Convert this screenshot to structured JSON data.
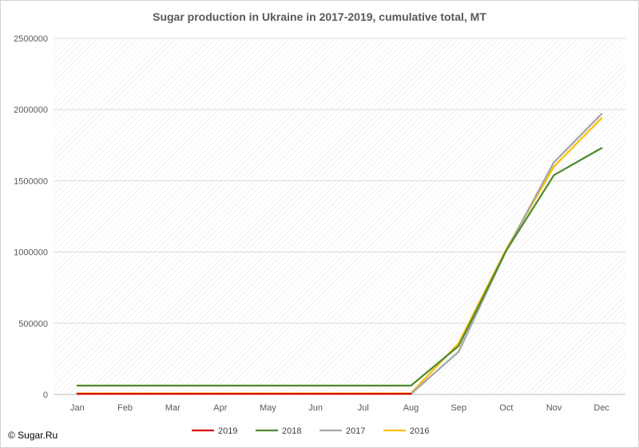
{
  "chart_data": {
    "type": "line",
    "title": "Sugar production in Ukraine in 2017-2019, cumulative total, MT",
    "xlabel": "",
    "ylabel": "",
    "categories": [
      "Jan",
      "Feb",
      "Mar",
      "Apr",
      "May",
      "Jun",
      "Jul",
      "Aug",
      "Sep",
      "Oct",
      "Nov",
      "Dec"
    ],
    "ylim": [
      0,
      2500000
    ],
    "yticks": [
      "0",
      "500000",
      "1000000",
      "1500000",
      "2000000",
      "2500000"
    ],
    "grid": true,
    "legend_position": "bottom",
    "series": [
      {
        "name": "2019",
        "color": "#e00000",
        "values": [
          5000,
          5000,
          5000,
          5000,
          5000,
          5000,
          5000,
          5000,
          null,
          null,
          null,
          null
        ]
      },
      {
        "name": "2018",
        "color": "#4e8a2e",
        "values": [
          62000,
          62000,
          62000,
          62000,
          62000,
          62000,
          62000,
          62000,
          340000,
          1010000,
          1540000,
          1730000
        ]
      },
      {
        "name": "2017",
        "color": "#a6a6a6",
        "values": [
          5000,
          5000,
          5000,
          5000,
          5000,
          5000,
          5000,
          5000,
          300000,
          1010000,
          1630000,
          1970000
        ]
      },
      {
        "name": "2016",
        "color": "#ffc000",
        "values": [
          8000,
          8000,
          8000,
          8000,
          8000,
          8000,
          8000,
          8000,
          360000,
          1020000,
          1600000,
          1940000
        ]
      }
    ]
  },
  "credit": "© Sugar.Ru"
}
